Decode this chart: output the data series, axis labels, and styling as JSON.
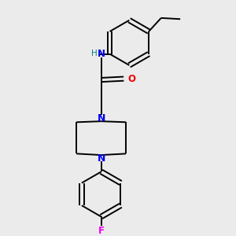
{
  "background_color": "#ebebeb",
  "line_color": "#000000",
  "N_color": "#0000ee",
  "O_color": "#ee0000",
  "F_color": "#ee00ee",
  "H_color": "#008080",
  "line_width": 1.4,
  "fig_width": 3.0,
  "fig_height": 3.0,
  "dpi": 100,
  "xlim": [
    0,
    10
  ],
  "ylim": [
    0,
    10
  ]
}
